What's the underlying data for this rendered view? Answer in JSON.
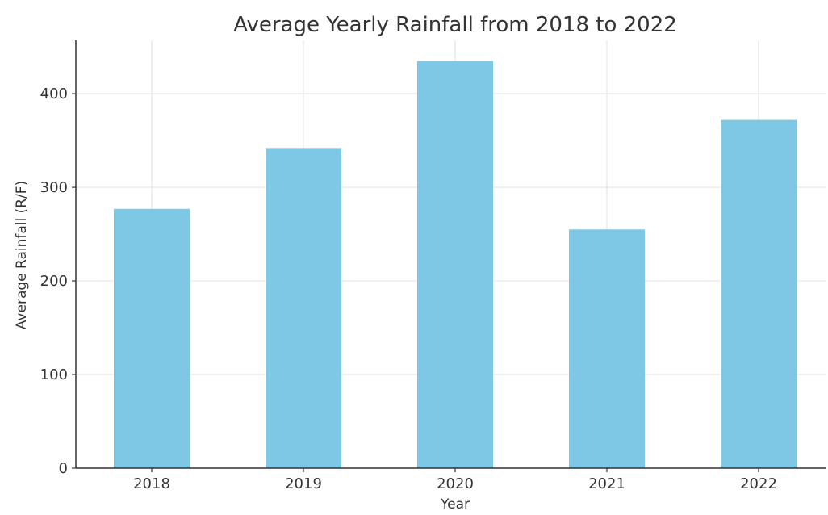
{
  "chart_data": {
    "type": "bar",
    "title": "Average Yearly Rainfall from 2018 to 2022",
    "xlabel": "Year",
    "ylabel": "Average Rainfall (R/F)",
    "categories": [
      "2018",
      "2019",
      "2020",
      "2021",
      "2022"
    ],
    "values": [
      277,
      342,
      435,
      255,
      372
    ],
    "ylim": [
      0,
      457
    ],
    "yticks": [
      0,
      100,
      200,
      300,
      400
    ],
    "grid": true,
    "bar_color": "#7ec8e6"
  }
}
